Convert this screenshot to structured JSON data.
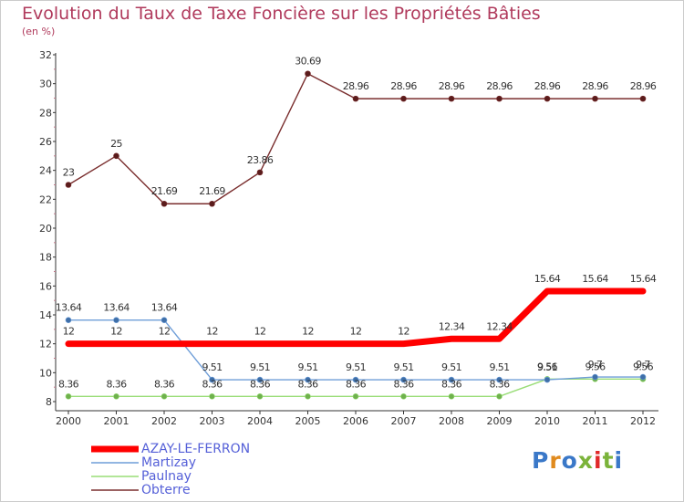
{
  "header": {
    "title": "Evolution du Taux de Taxe Foncière sur les Propriétés Bâties",
    "unit": "(en %)"
  },
  "logo": {
    "text": "Proxiti"
  },
  "colors": {
    "azay": "#ff0000",
    "martizay": "#6f9ed8",
    "paulnay": "#99dd77",
    "obterre": "#7a2e2e",
    "title": "#b03a5c",
    "legend_text": "#5560d8"
  },
  "chart_data": {
    "type": "line",
    "title": "Evolution du Taux de Taxe Foncière sur les Propriétés Bâties",
    "ylabel": "(en %)",
    "xlabel": "",
    "categories": [
      "2000",
      "2001",
      "2002",
      "2003",
      "2004",
      "2005",
      "2006",
      "2007",
      "2008",
      "2009",
      "2010",
      "2011",
      "2012"
    ],
    "ylim": [
      8,
      32
    ],
    "yticks": [
      8,
      10,
      12,
      14,
      16,
      18,
      20,
      22,
      24,
      26,
      28,
      30,
      32
    ],
    "grid": false,
    "legend": "bottom-left",
    "series": [
      {
        "name": "AZAY-LE-FERRON",
        "color": "#ff0000",
        "values": [
          12,
          12,
          12,
          12,
          12,
          12,
          12,
          12,
          12.34,
          12.34,
          15.64,
          15.64,
          15.64
        ],
        "labels": [
          "12",
          "12",
          "12",
          "12",
          "12",
          "12",
          "12",
          "12",
          "12.34",
          "12.34",
          "15.64",
          "15.64",
          "15.64"
        ]
      },
      {
        "name": "Martizay",
        "color": "#6f9ed8",
        "values": [
          13.64,
          13.64,
          13.64,
          9.51,
          9.51,
          9.51,
          9.51,
          9.51,
          9.51,
          9.51,
          9.51,
          9.7,
          9.7
        ],
        "labels": [
          "13.64",
          "13.64",
          "13.64",
          "9.51",
          "9.51",
          "9.51",
          "9.51",
          "9.51",
          "9.51",
          "9.51",
          "9.51",
          "9.7",
          "9.7"
        ]
      },
      {
        "name": "Paulnay",
        "color": "#99dd77",
        "values": [
          8.36,
          8.36,
          8.36,
          8.36,
          8.36,
          8.36,
          8.36,
          8.36,
          8.36,
          8.36,
          9.56,
          9.56,
          9.56
        ],
        "labels": [
          "8.36",
          "8.36",
          "8.36",
          "8.36",
          "8.36",
          "8.36",
          "8.36",
          "8.36",
          "8.36",
          "8.36",
          "9.56",
          "9.56",
          "9.56"
        ]
      },
      {
        "name": "Obterre",
        "color": "#7a2e2e",
        "values": [
          23,
          25,
          21.69,
          21.69,
          23.86,
          30.69,
          28.96,
          28.96,
          28.96,
          28.96,
          28.96,
          28.96,
          28.96
        ],
        "labels": [
          "23",
          "25",
          "21.69",
          "21.69",
          "23.86",
          "30.69",
          "28.96",
          "28.96",
          "28.96",
          "28.96",
          "28.96",
          "28.96",
          "28.96"
        ]
      }
    ]
  }
}
